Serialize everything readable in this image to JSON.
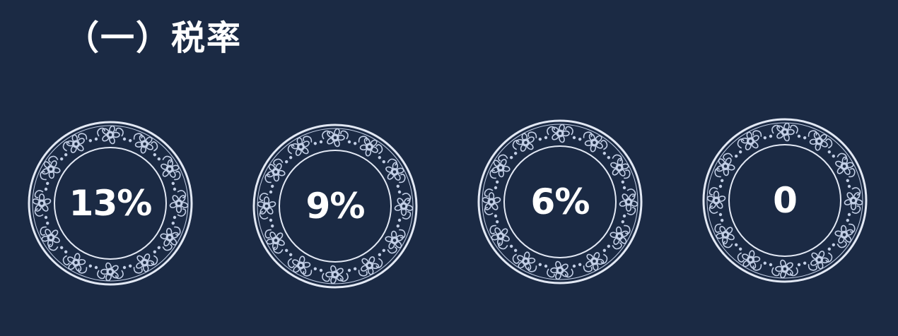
{
  "slide": {
    "title": "（一）税率",
    "rates": [
      {
        "value": "13%"
      },
      {
        "value": "9%"
      },
      {
        "value": "6%"
      },
      {
        "value": "0"
      }
    ]
  },
  "colors": {
    "background": "#1b2a44",
    "plate_ornament": "#c3cfe6",
    "plate_line": "#e2e8f4",
    "text": "#ffffff"
  }
}
